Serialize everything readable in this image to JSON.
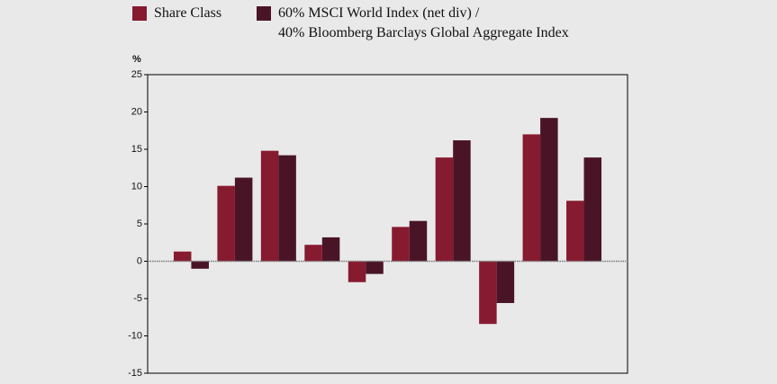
{
  "chart_data": {
    "type": "bar",
    "y_label": "%",
    "categories": [
      null,
      null,
      null,
      null,
      null,
      null,
      null,
      null,
      null,
      null
    ],
    "series": [
      {
        "name": "Share Class",
        "color": "#861a2f",
        "values": [
          1.3,
          10.1,
          14.8,
          2.2,
          -2.8,
          4.6,
          13.9,
          -8.4,
          17.0,
          8.1
        ]
      },
      {
        "name": "60% MSCI World Index (net div) /\n40% Bloomberg Barclays Global Aggregate Index",
        "color": "#4a1427",
        "values": [
          -1.0,
          11.2,
          14.2,
          3.2,
          -1.7,
          5.4,
          16.2,
          -5.6,
          19.2,
          13.9
        ]
      }
    ],
    "ylim": [
      -15,
      25
    ],
    "yticks": [
      -15,
      -10,
      -5,
      0,
      5,
      10,
      15,
      20,
      25
    ],
    "legend": "top"
  }
}
